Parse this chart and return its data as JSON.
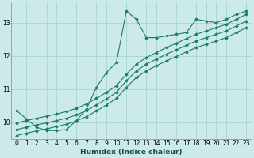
{
  "xlabel": "Humidex (Indice chaleur)",
  "bg_color": "#cceae7",
  "line_color": "#1a7a6e",
  "grid_color": "#aad4d0",
  "xlim": [
    -0.5,
    23.5
  ],
  "ylim": [
    9.5,
    13.6
  ],
  "xticks": [
    0,
    1,
    2,
    3,
    4,
    5,
    6,
    7,
    8,
    9,
    10,
    11,
    12,
    13,
    14,
    15,
    16,
    17,
    18,
    19,
    20,
    21,
    22,
    23
  ],
  "yticks": [
    10,
    11,
    12,
    13
  ],
  "series": [
    {
      "x": [
        0,
        1,
        2,
        3,
        4,
        5,
        6,
        7,
        8,
        9,
        10,
        11,
        12,
        13,
        14,
        15,
        16,
        17,
        18,
        19,
        20,
        21,
        22,
        23
      ],
      "y": [
        10.35,
        10.1,
        9.85,
        9.75,
        9.75,
        9.78,
        10.05,
        10.4,
        11.05,
        11.5,
        11.8,
        13.35,
        13.1,
        12.55,
        12.55,
        12.6,
        12.65,
        12.7,
        13.1,
        13.05,
        13.0,
        13.1,
        13.25,
        13.35
      ]
    },
    {
      "x": [
        0,
        1,
        2,
        3,
        4,
        5,
        6,
        7,
        8,
        9,
        10,
        11,
        12,
        13,
        14,
        15,
        16,
        17,
        18,
        19,
        20,
        21,
        22,
        23
      ],
      "y": [
        9.98,
        10.05,
        10.12,
        10.18,
        10.25,
        10.32,
        10.42,
        10.55,
        10.72,
        10.9,
        11.1,
        11.45,
        11.75,
        11.95,
        12.1,
        12.25,
        12.38,
        12.52,
        12.65,
        12.75,
        12.85,
        12.95,
        13.1,
        13.25
      ]
    },
    {
      "x": [
        0,
        1,
        2,
        3,
        4,
        5,
        6,
        7,
        8,
        9,
        10,
        11,
        12,
        13,
        14,
        15,
        16,
        17,
        18,
        19,
        20,
        21,
        22,
        23
      ],
      "y": [
        9.78,
        9.85,
        9.92,
        9.98,
        10.05,
        10.12,
        10.22,
        10.35,
        10.52,
        10.7,
        10.9,
        11.25,
        11.55,
        11.75,
        11.9,
        12.05,
        12.18,
        12.32,
        12.45,
        12.55,
        12.65,
        12.75,
        12.9,
        13.05
      ]
    },
    {
      "x": [
        0,
        1,
        2,
        3,
        4,
        5,
        6,
        7,
        8,
        9,
        10,
        11,
        12,
        13,
        14,
        15,
        16,
        17,
        18,
        19,
        20,
        21,
        22,
        23
      ],
      "y": [
        9.6,
        9.67,
        9.74,
        9.8,
        9.87,
        9.94,
        10.04,
        10.17,
        10.34,
        10.52,
        10.72,
        11.05,
        11.35,
        11.55,
        11.7,
        11.85,
        11.98,
        12.12,
        12.25,
        12.35,
        12.45,
        12.55,
        12.7,
        12.85
      ]
    }
  ]
}
